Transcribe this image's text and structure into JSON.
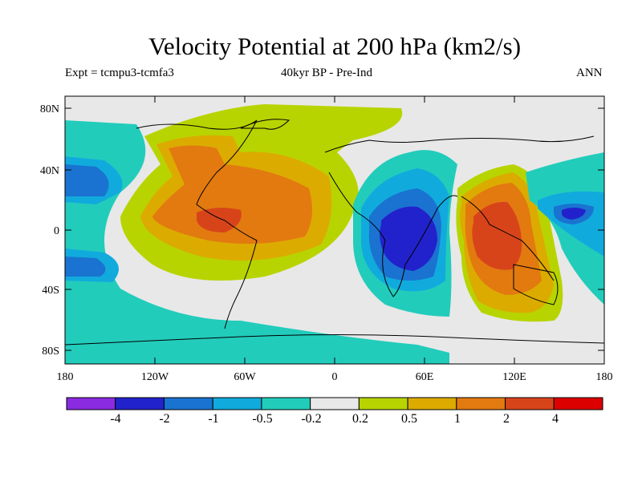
{
  "title": "Velocity Potential at 200 hPa (km2/s)",
  "subtitle_left": "Expt = tcmpu3-tcmfa3",
  "subtitle_center": "40kyr BP - Pre-Ind",
  "subtitle_right": "ANN",
  "map": {
    "lon_ticks": [
      "180",
      "120W",
      "60W",
      "0",
      "60E",
      "120E",
      "180"
    ],
    "lat_ticks": [
      "80N",
      "40N",
      "0",
      "40S",
      "80S"
    ],
    "lon_range": [
      -180,
      180
    ],
    "lat_range": [
      -90,
      90
    ]
  },
  "colorbar": {
    "labels": [
      "-4",
      "-2",
      "-1",
      "-0.5",
      "-0.2",
      "0.2",
      "0.5",
      "1",
      "2",
      "4"
    ],
    "colors": [
      "#8a2be2",
      "#2222cc",
      "#1a73d0",
      "#11aadd",
      "#22ccbb",
      "#e8e8e8",
      "#b8d400",
      "#dcab00",
      "#e27a10",
      "#d8441a",
      "#dd0000"
    ]
  }
}
